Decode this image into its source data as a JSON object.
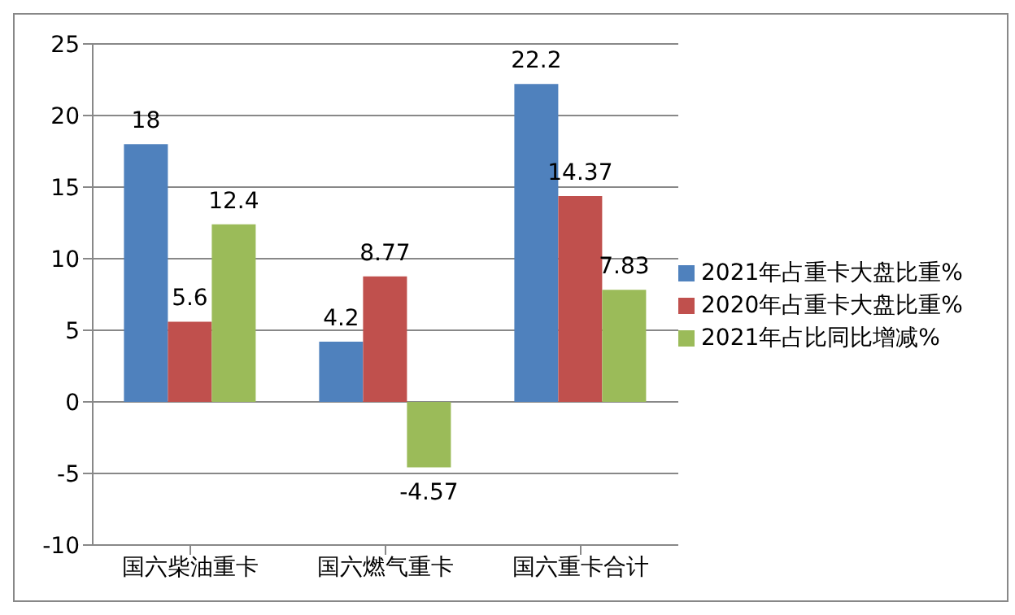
{
  "chart_data": {
    "type": "bar",
    "categories": [
      "国六柴油重卡",
      "国六燃气重卡",
      "国六重卡合计"
    ],
    "series": [
      {
        "name": "2021年占重卡大盘比重%",
        "color": "#4f81bd",
        "values": [
          18,
          4.2,
          22.2
        ]
      },
      {
        "name": "2020年占重卡大盘比重%",
        "color": "#c0504d",
        "values": [
          5.6,
          8.77,
          14.37
        ]
      },
      {
        "name": "2021年占比同比增减%",
        "color": "#9bbb59",
        "values": [
          12.4,
          -4.57,
          7.83
        ]
      }
    ],
    "ylim": [
      -10,
      25
    ],
    "yticks": [
      -10,
      -5,
      0,
      5,
      10,
      15,
      20,
      25
    ],
    "grid": "y",
    "legend": "right",
    "data_labels": true
  }
}
